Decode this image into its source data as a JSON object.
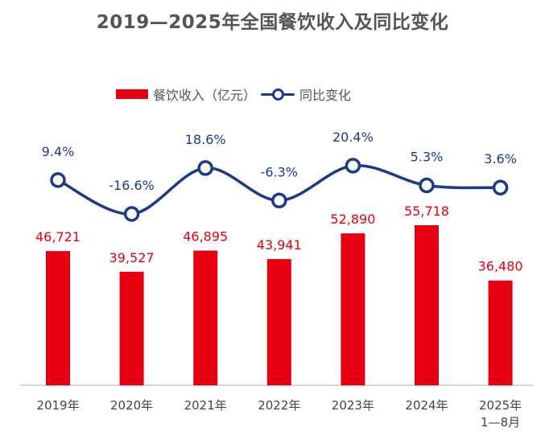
{
  "chart_data": {
    "type": "bar+line",
    "title": "2019—2025年全国餐饮收入及同比变化",
    "categories": [
      [
        "2019年"
      ],
      [
        "2020年"
      ],
      [
        "2021年"
      ],
      [
        "2022年"
      ],
      [
        "2023年"
      ],
      [
        "2024年"
      ],
      [
        "2025年",
        "1—8月"
      ]
    ],
    "series": [
      {
        "name": "餐饮收入（亿元）",
        "type": "bar",
        "color": "#e60012",
        "values": [
          46721,
          39527,
          46895,
          43941,
          52890,
          55718,
          36480
        ],
        "labels": [
          "46,721",
          "39,527",
          "46,895",
          "43,941",
          "52,890",
          "55,718",
          "36,480"
        ]
      },
      {
        "name": "同比变化",
        "type": "line",
        "color": "#1b3a8c",
        "smooth": true,
        "values": [
          9.4,
          -16.6,
          18.6,
          -6.3,
          20.4,
          5.3,
          3.6
        ],
        "labels": [
          "9.4%",
          "-16.6%",
          "18.6%",
          "-6.3%",
          "20.4%",
          "5.3%",
          "3.6%"
        ]
      }
    ],
    "legend": "top",
    "grid": false
  }
}
